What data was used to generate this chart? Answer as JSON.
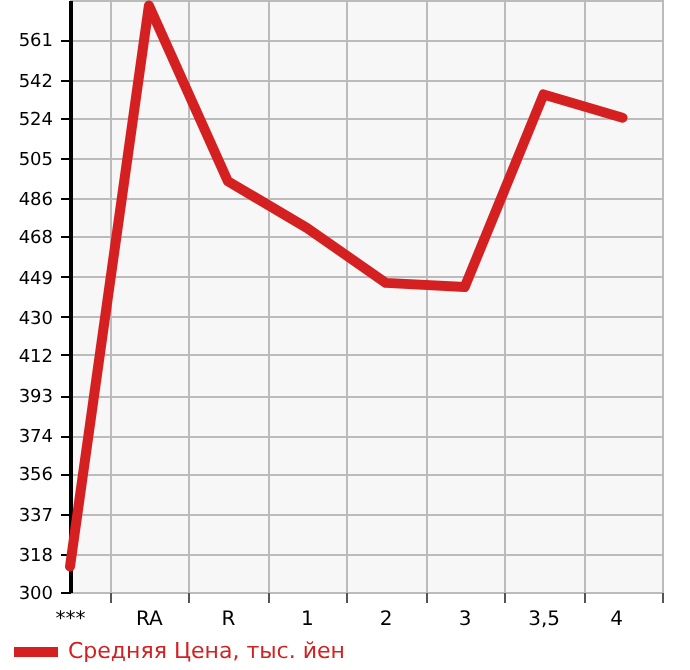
{
  "chart_data": {
    "type": "line",
    "categories": [
      "***",
      "RA",
      "R",
      "1",
      "2",
      "3",
      "3,5",
      "4"
    ],
    "series": [
      {
        "name": "Средняя Цена, тыс. йен",
        "color": "#d42020",
        "values": [
          312,
          577,
          494,
          472,
          446,
          444,
          535,
          524
        ]
      }
    ],
    "ylim": [
      300,
      579.6
    ],
    "yticks": [
      300,
      318,
      337,
      356,
      374,
      393,
      412,
      430,
      449,
      468,
      486,
      505,
      524,
      542,
      561
    ],
    "grid": true,
    "legend": "bottom left",
    "marker": "none",
    "line_style": "solid"
  }
}
